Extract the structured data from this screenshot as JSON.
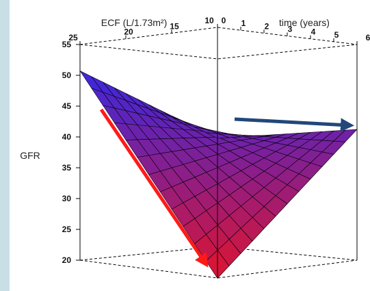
{
  "chart_data": {
    "type": "surface3d",
    "axes": {
      "ecf": {
        "label": "ECF (L/1.73m²)",
        "range": [
          10,
          25
        ],
        "ticks": [
          "25",
          "20",
          "15",
          "10"
        ]
      },
      "time": {
        "label": "time (years)",
        "range": [
          0,
          6
        ],
        "ticks": [
          "0",
          "1",
          "2",
          "3",
          "4",
          "5",
          "6"
        ]
      },
      "gfr": {
        "label": "GFR",
        "range": [
          20,
          55
        ],
        "ticks": [
          "55",
          "50",
          "45",
          "40",
          "35",
          "30",
          "25",
          "20"
        ]
      }
    },
    "surface_corners": [
      {
        "ecf": 25,
        "time": 0,
        "gfr": 50.5
      },
      {
        "ecf": 10,
        "time": 0,
        "gfr": 42
      },
      {
        "ecf": 25,
        "time": 6,
        "gfr": 19.5
      },
      {
        "ecf": 10,
        "time": 6,
        "gfr": 41
      }
    ],
    "grid_divisions": 12,
    "colors": {
      "surface_high": "#3a28e0",
      "surface_low": "#e0142e",
      "mesh": "#000000",
      "red_arrow": "#ff1a1a",
      "blue_arrow": "#22477a",
      "side_strip": "#c9dfe6"
    },
    "annotations": [
      {
        "type": "arrow",
        "color": "red",
        "direction": "down along ECF edge"
      },
      {
        "type": "arrow",
        "color": "blue",
        "direction": "right along time edge"
      }
    ]
  }
}
